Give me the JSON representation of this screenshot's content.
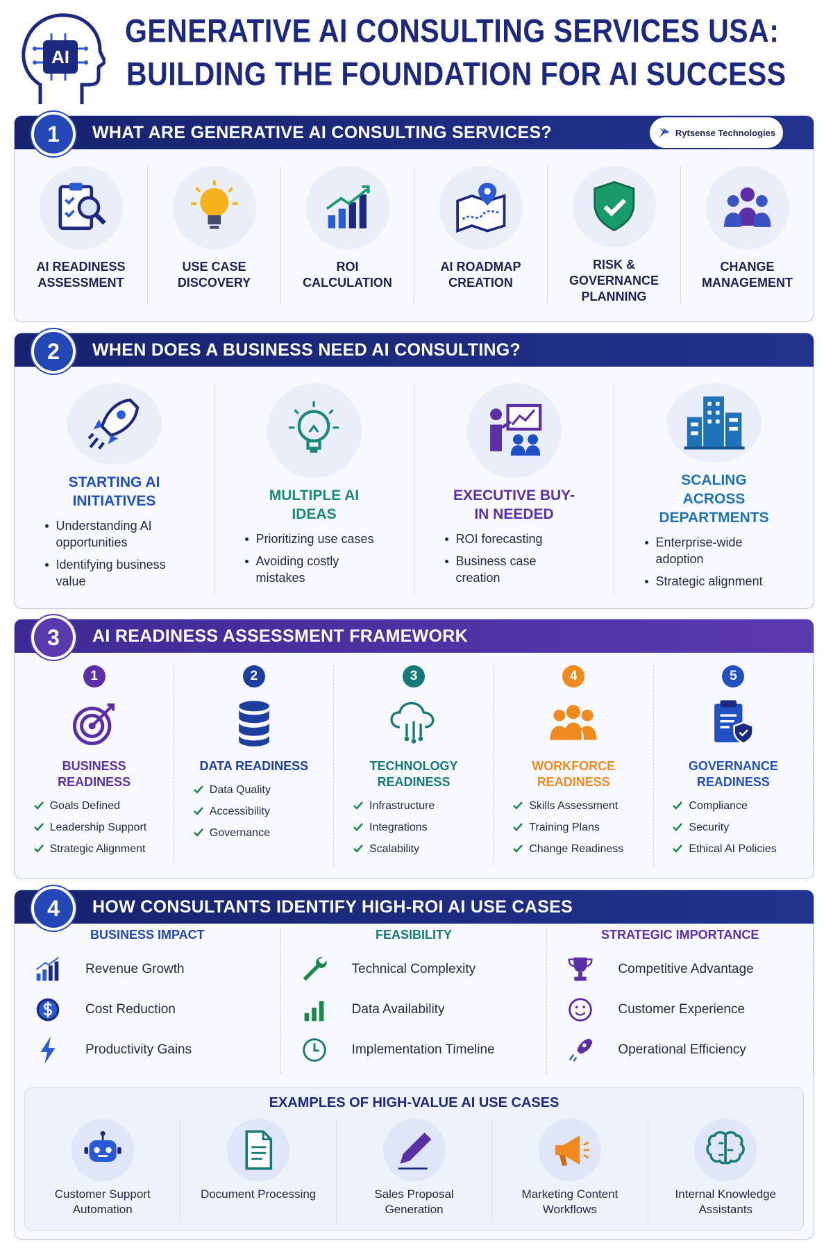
{
  "header": {
    "icon_text": "AI",
    "title_line1": "GENERATIVE AI CONSULTING SERVICES USA:",
    "title_line2": "BUILDING THE FOUNDATION FOR AI SUCCESS"
  },
  "sections": [
    {
      "number": "1",
      "title": "WHAT ARE GENERATIVE AI CONSULTING SERVICES?",
      "brand": "Rytsense Technologies",
      "items": [
        "AI READINESS ASSESSMENT",
        "USE CASE DISCOVERY",
        "ROI CALCULATION",
        "AI ROADMAP CREATION",
        "RISK & GOVERNANCE PLANNING",
        "CHANGE MANAGEMENT"
      ]
    },
    {
      "number": "2",
      "title": "WHEN DOES A BUSINESS NEED AI CONSULTING?",
      "items": [
        {
          "title": "STARTING AI INITIATIVES",
          "color": "#1f4fc4",
          "bullets": [
            "Understanding AI opportunities",
            "Identifying business value"
          ]
        },
        {
          "title": "MULTIPLE AI IDEAS",
          "color": "#178a78",
          "bullets": [
            "Prioritizing use cases",
            "Avoiding costly mistakes"
          ]
        },
        {
          "title": "EXECUTIVE BUY-IN NEEDED",
          "color": "#5b2fa6",
          "bullets": [
            "ROI forecasting",
            "Business case creation"
          ]
        },
        {
          "title": "SCALING ACROSS DEPARTMENTS",
          "color": "#1f72b8",
          "bullets": [
            "Enterprise-wide adoption",
            "Strategic alignment"
          ]
        }
      ]
    },
    {
      "number": "3",
      "title": "AI READINESS ASSESSMENT FRAMEWORK",
      "items": [
        {
          "number": "1",
          "title": "BUSINESS READINESS",
          "color": "#5b2fa6",
          "checks": [
            "Goals Defined",
            "Leadership Support",
            "Strategic Alignment"
          ]
        },
        {
          "number": "2",
          "title": "DATA READINESS",
          "color": "#1d3f9e",
          "checks": [
            "Data Quality",
            "Accessibility",
            "Governance"
          ]
        },
        {
          "number": "3",
          "title": "TECHNOLOGY READINESS",
          "color": "#157a78",
          "checks": [
            "Infrastructure",
            "Integrations",
            "Scalability"
          ]
        },
        {
          "number": "4",
          "title": "WORKFORCE READINESS",
          "color": "#ef8a1f",
          "checks": [
            "Skills Assessment",
            "Training Plans",
            "Change Readiness"
          ]
        },
        {
          "number": "5",
          "title": "GOVERNANCE READINESS",
          "color": "#2150c0",
          "checks": [
            "Compliance",
            "Security",
            "Ethical AI Policies"
          ]
        }
      ]
    },
    {
      "number": "4",
      "title": "HOW CONSULTANTS IDENTIFY HIGH-ROI AI USE CASES",
      "columns": [
        {
          "title": "BUSINESS IMPACT",
          "items": [
            "Revenue Growth",
            "Cost Reduction",
            "Productivity Gains"
          ]
        },
        {
          "title": "FEASIBILITY",
          "items": [
            "Technical Complexity",
            "Data Availability",
            "Implementation Timeline"
          ]
        },
        {
          "title": "STRATEGIC IMPORTANCE",
          "items": [
            "Competitive Advantage",
            "Customer Experience",
            "Operational Efficiency"
          ]
        }
      ],
      "examples": {
        "title": "EXAMPLES OF HIGH-VALUE AI USE CASES",
        "items": [
          "Customer Support Automation",
          "Document Processing",
          "Sales Proposal Generation",
          "Marketing Content Workflows",
          "Internal Knowledge Assistants"
        ]
      }
    }
  ]
}
